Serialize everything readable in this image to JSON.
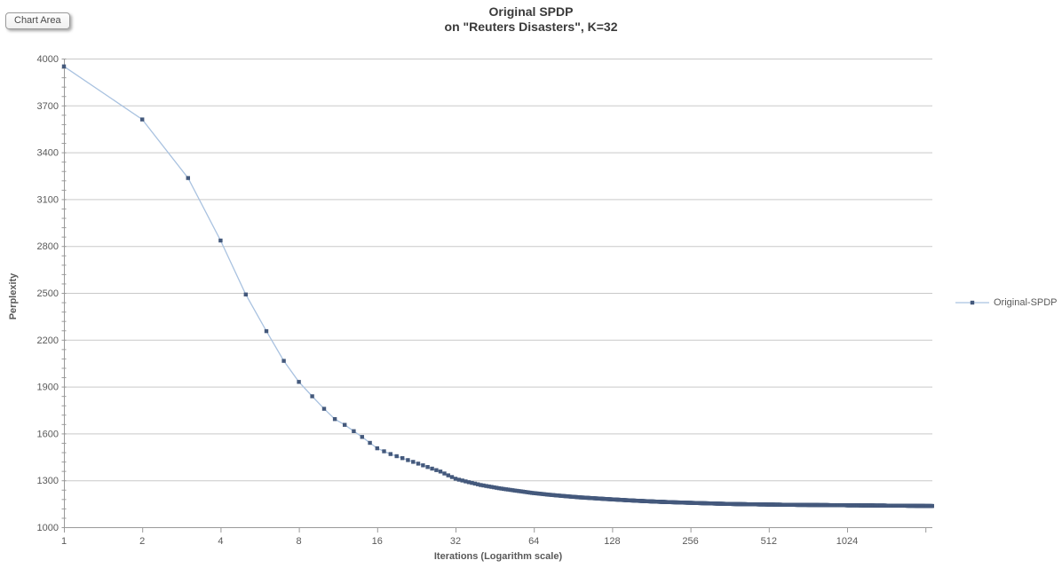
{
  "tooltip": {
    "label": "Chart Area"
  },
  "chart": {
    "title_line1": "Original SPDP",
    "title_line2": "on \"Reuters Disasters\", K=32",
    "legend": {
      "label": "Original-SPDP"
    },
    "y_axis": {
      "title": "Perplexity"
    },
    "x_axis": {
      "title": "Iterations (Logarithm scale)"
    }
  },
  "chart_data": {
    "type": "line",
    "title": "Original SPDP on \"Reuters Disasters\", K=32",
    "xlabel": "Iterations (Logarithm scale)",
    "ylabel": "Perplexity",
    "x_scale": "log2",
    "x_range": [
      1,
      2176
    ],
    "ylim": [
      1000,
      4000
    ],
    "y_major_unit": 300,
    "y_minor_unit": 60,
    "grid": "horizontal-only",
    "legend_position": "right",
    "x_tick_values": [
      1,
      2,
      4,
      8,
      16,
      32,
      64,
      128,
      256,
      512,
      1024,
      2048
    ],
    "x_tick_labels": [
      "1",
      "2",
      "4",
      "8",
      "16",
      "32",
      "64",
      "128",
      "256",
      "512",
      "1024",
      ""
    ],
    "y_tick_values": [
      4000,
      3700,
      3400,
      3100,
      2800,
      2500,
      2200,
      1900,
      1600,
      1300,
      1000
    ],
    "series": [
      {
        "name": "Original-SPDP",
        "marker_at_every_integer_iteration": true,
        "points": [
          [
            1,
            3950
          ],
          [
            2,
            3610
          ],
          [
            3,
            3235
          ],
          [
            4,
            2835
          ],
          [
            5,
            2490
          ],
          [
            6,
            2255
          ],
          [
            7,
            2065
          ],
          [
            8,
            1930
          ],
          [
            9,
            1838
          ],
          [
            10,
            1758
          ],
          [
            11,
            1692
          ],
          [
            12,
            1655
          ],
          [
            13,
            1615
          ],
          [
            14,
            1578
          ],
          [
            15,
            1540
          ],
          [
            16,
            1505
          ],
          [
            18,
            1468
          ],
          [
            20,
            1442
          ],
          [
            22,
            1418
          ],
          [
            24,
            1396
          ],
          [
            26,
            1375
          ],
          [
            28,
            1356
          ],
          [
            30,
            1332
          ],
          [
            32,
            1310
          ],
          [
            36,
            1288
          ],
          [
            40,
            1270
          ],
          [
            44,
            1258
          ],
          [
            48,
            1247
          ],
          [
            56,
            1231
          ],
          [
            64,
            1218
          ],
          [
            72,
            1209
          ],
          [
            80,
            1202
          ],
          [
            96,
            1191
          ],
          [
            112,
            1184
          ],
          [
            128,
            1178
          ],
          [
            160,
            1169
          ],
          [
            192,
            1163
          ],
          [
            224,
            1159
          ],
          [
            256,
            1156
          ],
          [
            320,
            1151
          ],
          [
            384,
            1148
          ],
          [
            448,
            1146
          ],
          [
            512,
            1145
          ],
          [
            640,
            1143
          ],
          [
            768,
            1142
          ],
          [
            896,
            1141
          ],
          [
            1024,
            1140
          ],
          [
            1280,
            1139
          ],
          [
            1536,
            1138
          ],
          [
            1792,
            1137
          ],
          [
            2048,
            1136
          ],
          [
            2176,
            1136
          ]
        ]
      }
    ],
    "colors": {
      "line": "#a9c2e0",
      "marker": "#44597c",
      "gridline": "#c9c9c9",
      "axis": "#9a9a9a",
      "tick_text": "#595959",
      "title_text": "#3a3a3a"
    }
  }
}
